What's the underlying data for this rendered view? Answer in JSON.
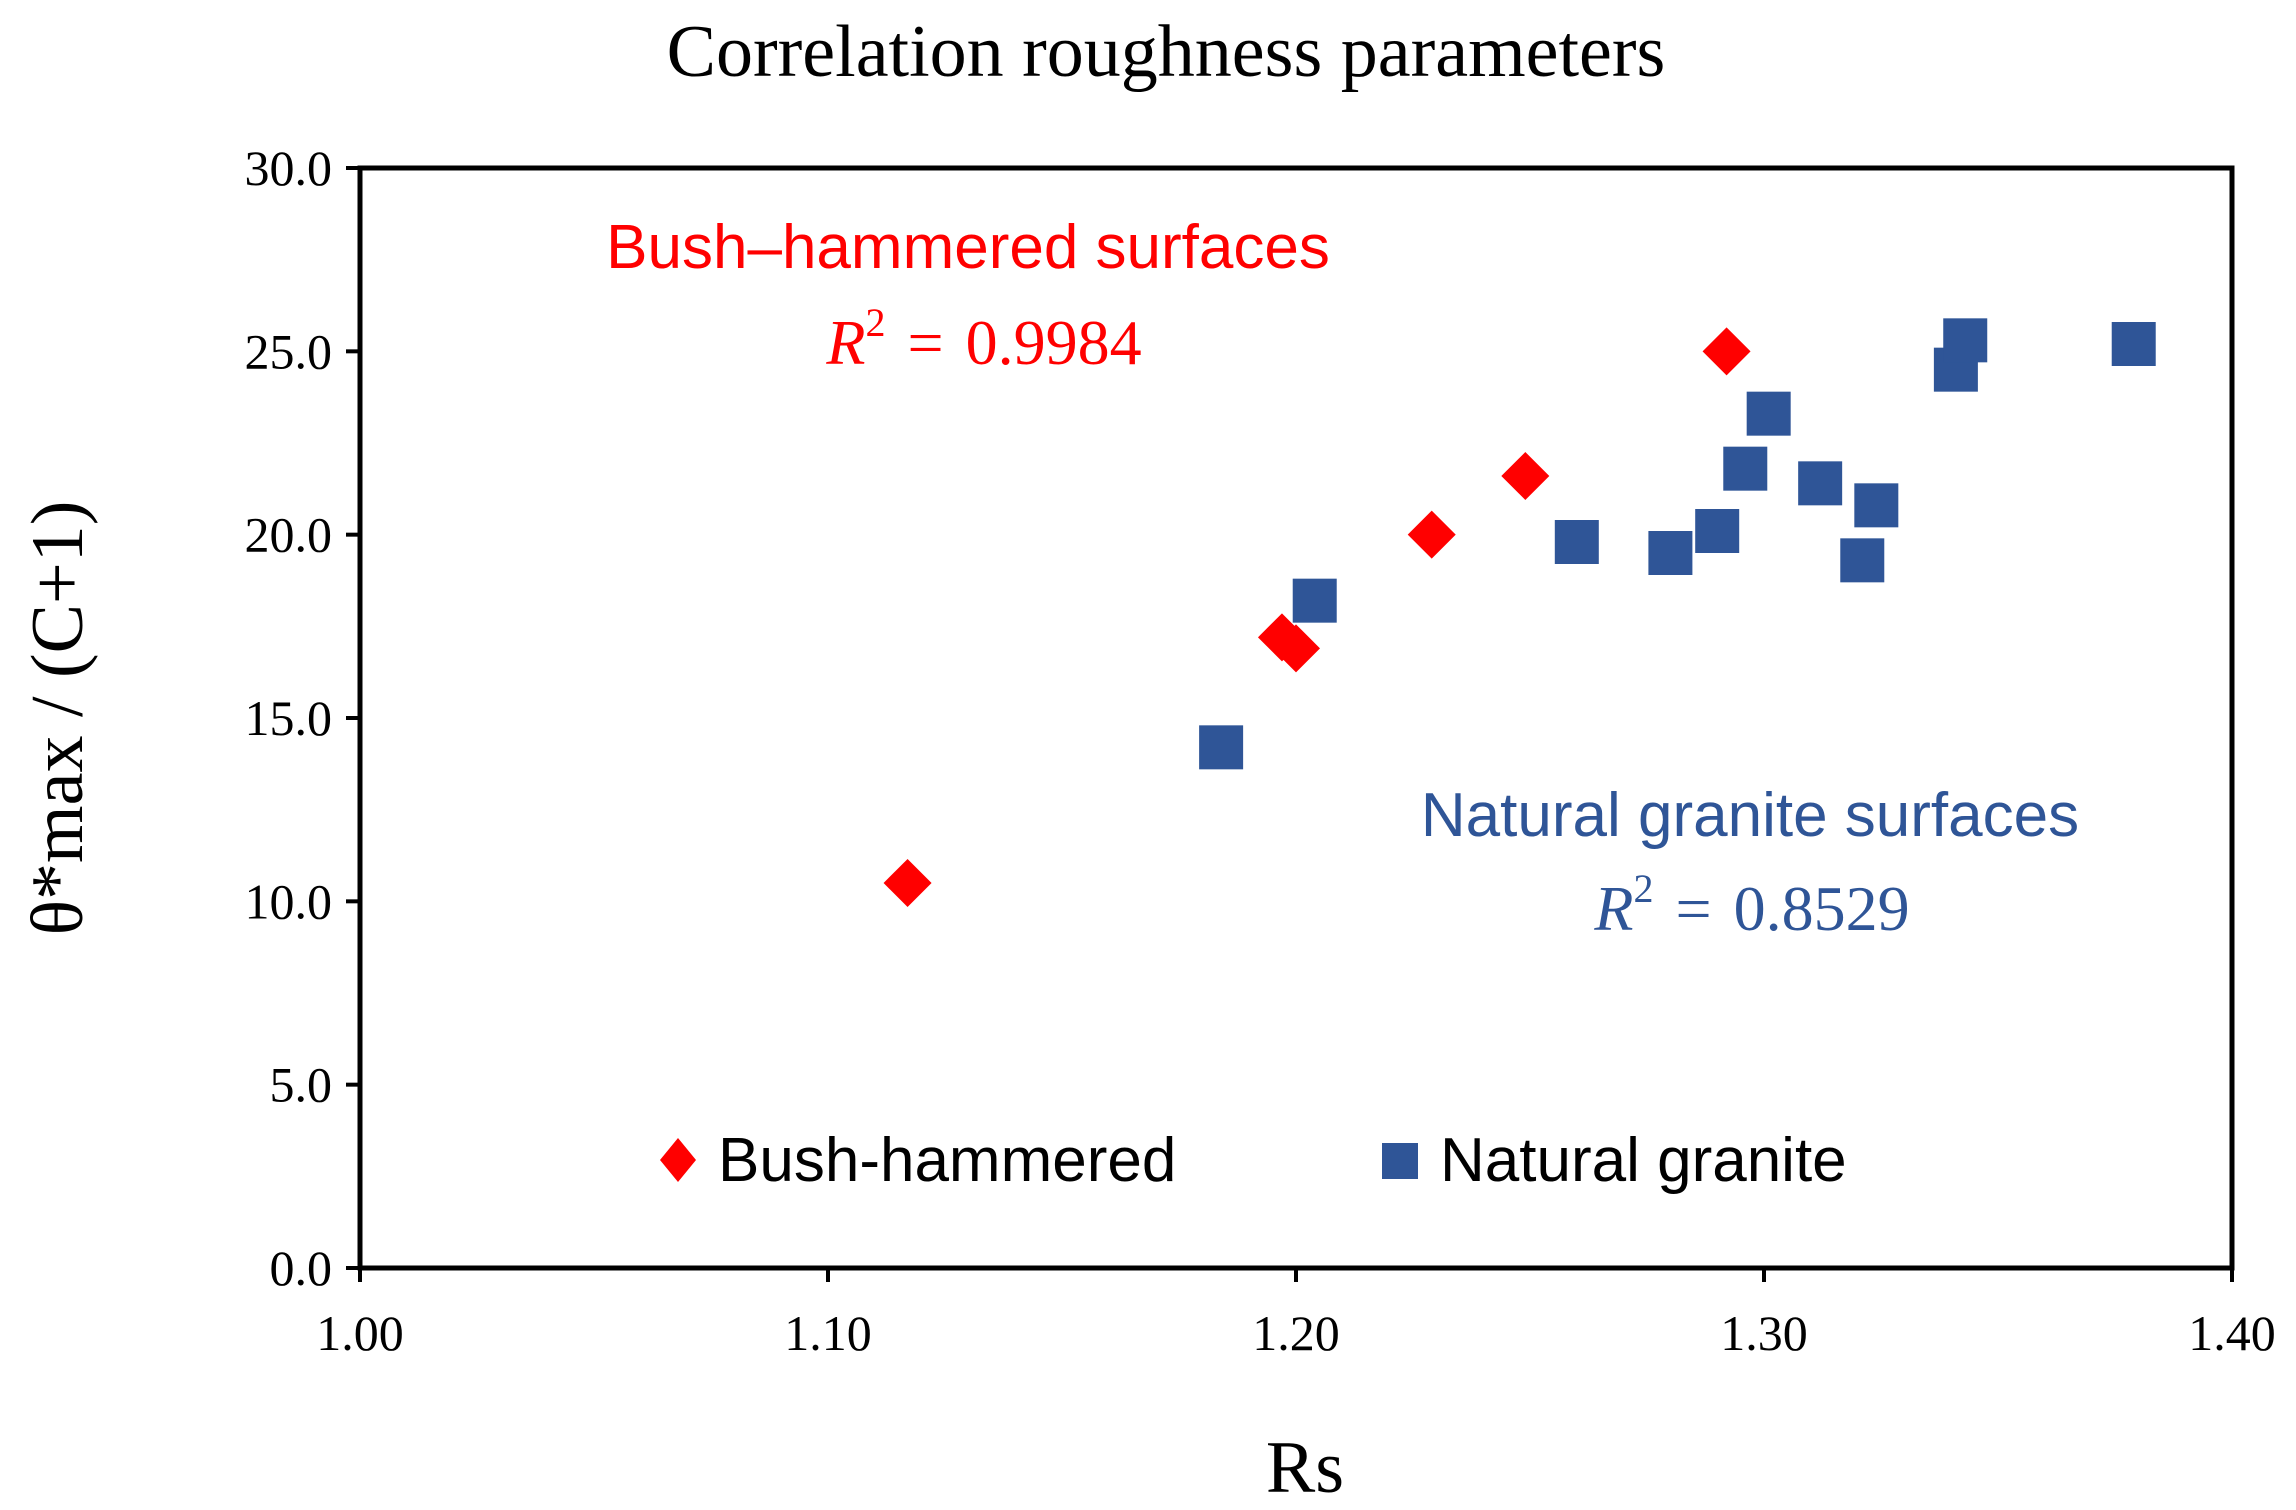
{
  "chart_data": {
    "type": "scatter",
    "title": "Correlation roughness parameters",
    "xlabel": "Rs",
    "ylabel": "θ*max / (C+1)",
    "xlim": [
      1.0,
      1.4
    ],
    "ylim": [
      0.0,
      30.0
    ],
    "x_ticks": [
      "1.00",
      "1.10",
      "1.20",
      "1.30",
      "1.40"
    ],
    "y_ticks": [
      "0.0",
      "5.0",
      "10.0",
      "15.0",
      "20.0",
      "25.0",
      "30.0"
    ],
    "grid": false,
    "legend_position": "bottom-center",
    "series": [
      {
        "name": "Bush-hammered",
        "marker": "diamond",
        "color": "#ff0000",
        "points": [
          {
            "x": 1.117,
            "y": 10.5
          },
          {
            "x": 1.197,
            "y": 17.2
          },
          {
            "x": 1.2,
            "y": 16.9
          },
          {
            "x": 1.229,
            "y": 20.0
          },
          {
            "x": 1.249,
            "y": 21.6
          },
          {
            "x": 1.292,
            "y": 25.0
          }
        ]
      },
      {
        "name": "Natural granite",
        "marker": "square",
        "color": "#2f5597",
        "points": [
          {
            "x": 1.184,
            "y": 14.2
          },
          {
            "x": 1.204,
            "y": 18.2
          },
          {
            "x": 1.26,
            "y": 19.8
          },
          {
            "x": 1.28,
            "y": 19.5
          },
          {
            "x": 1.29,
            "y": 20.1
          },
          {
            "x": 1.296,
            "y": 21.8
          },
          {
            "x": 1.301,
            "y": 23.3
          },
          {
            "x": 1.312,
            "y": 21.4
          },
          {
            "x": 1.321,
            "y": 19.3
          },
          {
            "x": 1.324,
            "y": 20.8
          },
          {
            "x": 1.341,
            "y": 24.5
          },
          {
            "x": 1.343,
            "y": 25.3
          },
          {
            "x": 1.379,
            "y": 25.2
          }
        ]
      }
    ],
    "annotations": [
      {
        "id": "bush",
        "label": "Bush–hammered surfaces",
        "r2_symbol": "R",
        "r2_exp": "2",
        "r2_equals": "=",
        "r2_value": "0.9984",
        "color": "#ff0000"
      },
      {
        "id": "granite",
        "label": "Natural granite surfaces",
        "r2_symbol": "R",
        "r2_exp": "2",
        "r2_equals": "=",
        "r2_value": "0.8529",
        "color": "#2f5597"
      }
    ]
  }
}
